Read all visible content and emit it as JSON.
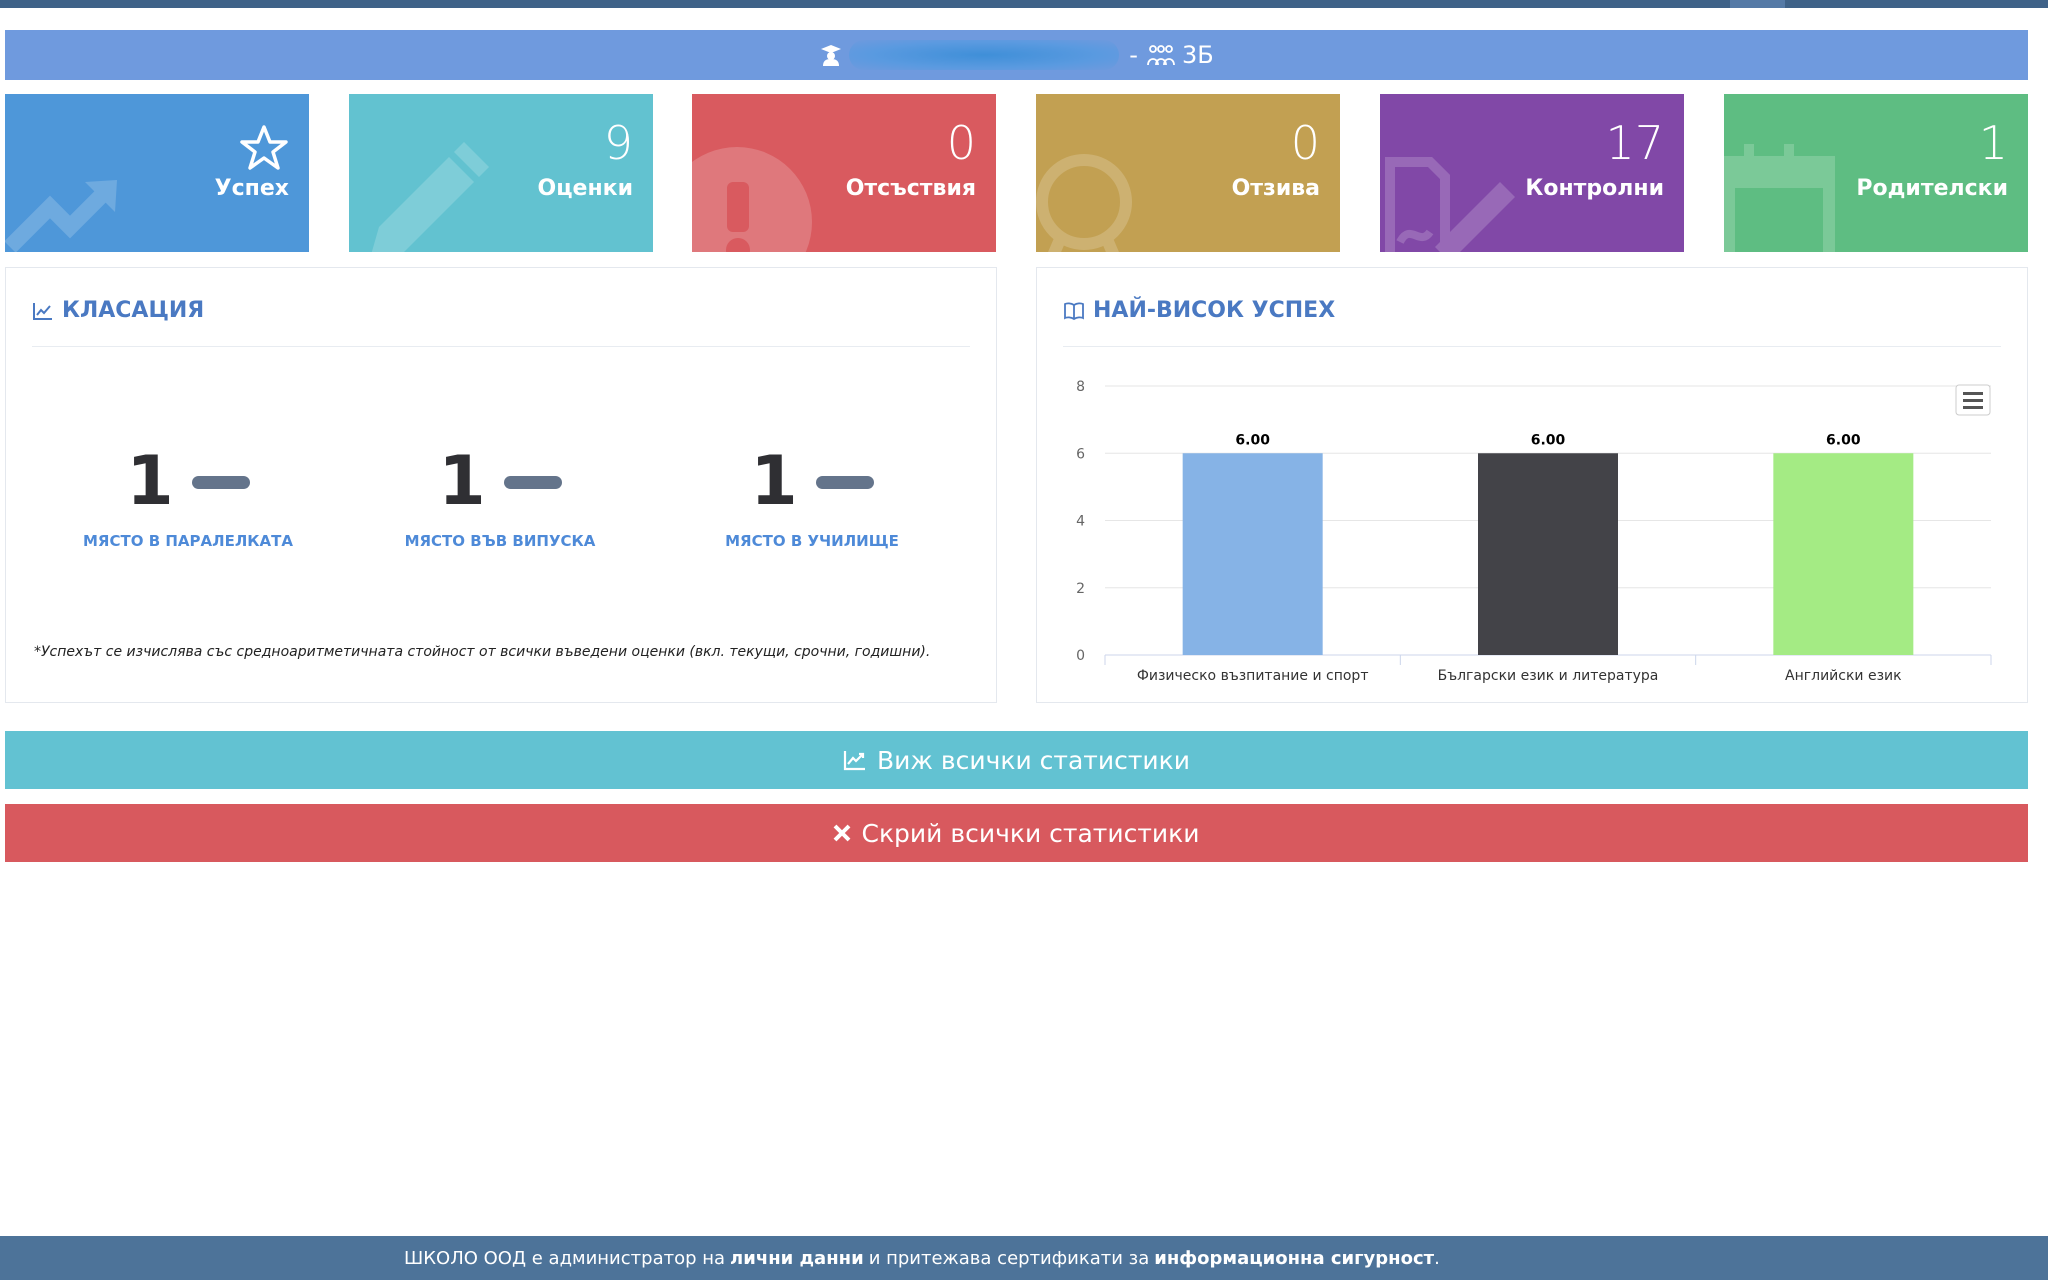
{
  "student_bar": {
    "separator": "-",
    "class_name": "3Б"
  },
  "tiles": [
    {
      "label": "Успех",
      "value": "",
      "color": "#4e97d9",
      "icon": "trending-up-icon"
    },
    {
      "label": "Оценки",
      "value": "9",
      "color": "#62c2d0",
      "icon": "pencil-icon"
    },
    {
      "label": "Отсъствия",
      "value": "0",
      "color": "#d95a5f",
      "icon": "exclamation-icon"
    },
    {
      "label": "Отзива",
      "value": "0",
      "color": "#c2a052",
      "icon": "award-icon"
    },
    {
      "label": "Контролни",
      "value": "17",
      "color": "#8148a7",
      "icon": "file-edit-icon"
    },
    {
      "label": "Родителски",
      "value": "1",
      "color": "#5ebd82",
      "icon": "calendar-icon"
    }
  ],
  "ranking": {
    "title": "КЛАСАЦИЯ",
    "items": [
      {
        "value": "1",
        "label": "МЯСТО В ПАРАЛЕЛКАТА"
      },
      {
        "value": "1",
        "label": "МЯСТО ВЪВ ВИПУСКА"
      },
      {
        "value": "1",
        "label": "МЯСТО В УЧИЛИЩЕ"
      }
    ],
    "note": "*Успехът се изчислява със средноаритметичната стойност от всички въведени оценки (вкл. текущи, срочни, годишни)."
  },
  "top_success": {
    "title": "НАЙ-ВИСОК УСПЕХ"
  },
  "chart_data": {
    "type": "bar",
    "categories": [
      "Физическо възпитание и спорт",
      "Български език и литература",
      "Английски език"
    ],
    "values": [
      6.0,
      6.0,
      6.0
    ],
    "data_labels": [
      "6.00",
      "6.00",
      "6.00"
    ],
    "colors": [
      "#86b3e6",
      "#434348",
      "#a4eb84"
    ],
    "yticks": [
      "0",
      "2",
      "4",
      "6",
      "8"
    ],
    "ylim": [
      0,
      8
    ],
    "grid": true,
    "legend": "none"
  },
  "buttons": {
    "view_all": "Виж всички статистики",
    "hide_all": "Скрий всички статистики"
  },
  "footer": {
    "text1": "ШКОЛО ООД е администратор на",
    "bold1": "лични данни",
    "text2": "и притежава сертификати за",
    "bold2": "информационна сигурност",
    "text3": "."
  }
}
